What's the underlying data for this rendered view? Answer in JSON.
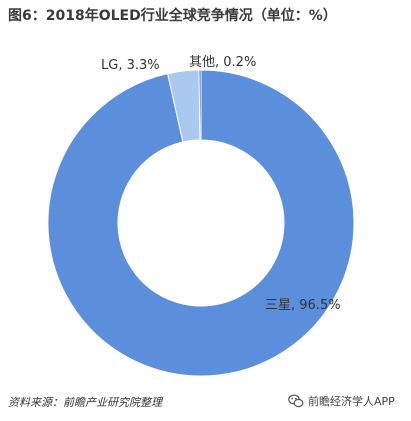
{
  "chart_data": {
    "type": "pie",
    "title": "图6：2018年OLED行业全球竞争情况（单位：%）",
    "slices": [
      {
        "label": "三星, 96.5%",
        "name": "三星",
        "value": 96.5,
        "color": "#5b8fdc"
      },
      {
        "label": "LG, 3.3%",
        "name": "LG",
        "value": 3.3,
        "color": "#a9c9ef"
      },
      {
        "label": "其他, 0.2%",
        "name": "其他",
        "value": 0.2,
        "color": "#2f4f8f"
      }
    ],
    "donut": true
  },
  "source_note": "资料来源：前瞻产业研究院整理",
  "brand": {
    "name": "前瞻经济学人APP",
    "logo_icon": "wechat-logo-icon"
  }
}
